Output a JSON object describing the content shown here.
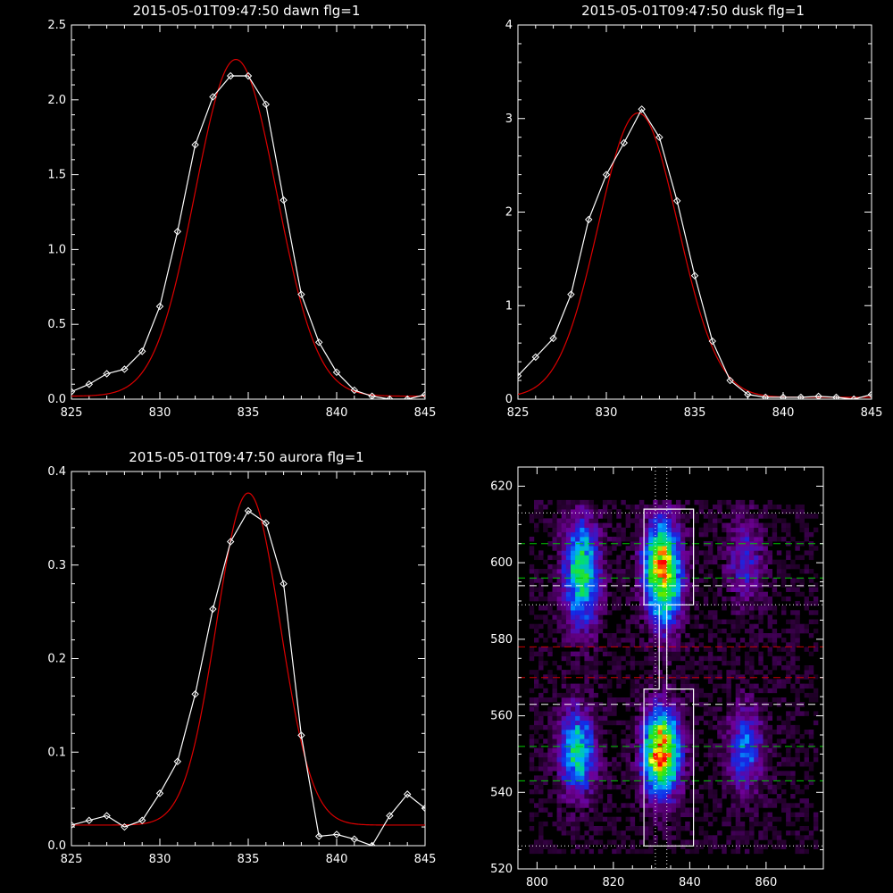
{
  "colors": {
    "background": "#000000",
    "axes": "#ffffff",
    "data_line": "#ffffff",
    "fit_line": "#dd0000"
  },
  "chart_data": [
    {
      "id": "dawn",
      "type": "line",
      "title": "2015-05-01T09:47:50 dawn flg=1",
      "xlim": [
        825,
        845
      ],
      "ylim": [
        0,
        2.5
      ],
      "xticks": [
        825,
        830,
        835,
        840,
        845
      ],
      "yticks": [
        0.0,
        0.5,
        1.0,
        1.5,
        2.0,
        2.5
      ],
      "ytick_labels": [
        "0.0",
        "0.5",
        "1.0",
        "1.5",
        "2.0",
        "2.5"
      ],
      "series": [
        {
          "role": "data",
          "marker": "diamond",
          "x": [
            825,
            826,
            827,
            828,
            829,
            830,
            831,
            832,
            833,
            834,
            835,
            836,
            837,
            838,
            839,
            840,
            841,
            842,
            843,
            844,
            845
          ],
          "y": [
            0.05,
            0.1,
            0.17,
            0.2,
            0.32,
            0.62,
            1.12,
            1.7,
            2.02,
            2.16,
            2.16,
            1.97,
            1.33,
            0.7,
            0.38,
            0.18,
            0.06,
            0.02,
            0.0,
            0.0,
            0.03
          ]
        },
        {
          "role": "fit",
          "gaussian": {
            "amplitude": 2.25,
            "center": 834.3,
            "sigma": 2.3,
            "baseline": 0.02
          }
        }
      ]
    },
    {
      "id": "dusk",
      "type": "line",
      "title": "2015-05-01T09:47:50 dusk flg=1",
      "xlim": [
        825,
        845
      ],
      "ylim": [
        0,
        4
      ],
      "xticks": [
        825,
        830,
        835,
        840,
        845
      ],
      "yticks": [
        0,
        1,
        2,
        3,
        4
      ],
      "ytick_labels": [
        "0",
        "1",
        "2",
        "3",
        "4"
      ],
      "series": [
        {
          "role": "data",
          "marker": "diamond",
          "x": [
            825,
            826,
            827,
            828,
            829,
            830,
            831,
            832,
            833,
            834,
            835,
            836,
            837,
            838,
            839,
            840,
            841,
            842,
            843,
            844,
            845
          ],
          "y": [
            0.25,
            0.45,
            0.65,
            1.12,
            1.92,
            2.4,
            2.74,
            3.1,
            2.8,
            2.12,
            1.32,
            0.62,
            0.2,
            0.05,
            0.02,
            0.02,
            0.02,
            0.03,
            0.02,
            0.0,
            0.05
          ]
        },
        {
          "role": "fit",
          "gaussian": {
            "amplitude": 3.04,
            "center": 831.8,
            "sigma": 2.25,
            "baseline": 0.02
          }
        }
      ]
    },
    {
      "id": "aurora",
      "type": "line",
      "title": "2015-05-01T09:47:50 aurora flg=1",
      "xlim": [
        825,
        845
      ],
      "ylim": [
        0,
        0.4
      ],
      "xticks": [
        825,
        830,
        835,
        840,
        845
      ],
      "yticks": [
        0.0,
        0.1,
        0.2,
        0.3,
        0.4
      ],
      "ytick_labels": [
        "0.0",
        "0.1",
        "0.2",
        "0.3",
        "0.4"
      ],
      "series": [
        {
          "role": "data",
          "marker": "diamond",
          "x": [
            825,
            826,
            827,
            828,
            829,
            830,
            831,
            832,
            833,
            834,
            835,
            836,
            837,
            838,
            839,
            840,
            841,
            842,
            843,
            844,
            845
          ],
          "y": [
            0.022,
            0.027,
            0.032,
            0.02,
            0.027,
            0.056,
            0.09,
            0.162,
            0.253,
            0.325,
            0.358,
            0.345,
            0.28,
            0.118,
            0.01,
            0.012,
            0.007,
            0.0,
            0.032,
            0.055,
            0.04
          ]
        },
        {
          "role": "fit",
          "gaussian": {
            "amplitude": 0.355,
            "center": 835.0,
            "sigma": 1.8,
            "baseline": 0.022
          }
        }
      ]
    },
    {
      "id": "image",
      "type": "heatmap",
      "title": "",
      "xlim": [
        795,
        875
      ],
      "ylim": [
        520,
        625
      ],
      "xticks": [
        800,
        820,
        840,
        860
      ],
      "yticks": [
        520,
        540,
        560,
        580,
        600,
        620
      ],
      "emission_blobs": [
        {
          "x": 811,
          "y": 601,
          "intensity": 0.45
        },
        {
          "x": 811,
          "y": 590,
          "intensity": 0.3
        },
        {
          "x": 832,
          "y": 600,
          "intensity": 0.72
        },
        {
          "x": 833,
          "y": 590,
          "intensity": 0.35
        },
        {
          "x": 854,
          "y": 600,
          "intensity": 0.25
        },
        {
          "x": 810,
          "y": 550,
          "intensity": 0.55
        },
        {
          "x": 832,
          "y": 550,
          "intensity": 0.95
        },
        {
          "x": 854,
          "y": 551,
          "intensity": 0.35
        }
      ],
      "hot_spots": [
        {
          "x": 833,
          "y": 600,
          "color": "#ff0000"
        },
        {
          "x": 831,
          "y": 549,
          "color": "#ff2000"
        },
        {
          "x": 832,
          "y": 551,
          "color": "#ffdd00"
        },
        {
          "x": 830,
          "y": 548,
          "color": "#ffff40"
        }
      ],
      "hlines": [
        {
          "y": 613,
          "style": "dotted",
          "color": "#ffffff"
        },
        {
          "y": 605,
          "style": "dashed",
          "color": "#00cc00"
        },
        {
          "y": 596,
          "style": "dashed",
          "color": "#00cc00"
        },
        {
          "y": 594,
          "style": "dashed",
          "color": "#ffffff"
        },
        {
          "y": 589,
          "style": "dotted",
          "color": "#ffffff"
        },
        {
          "y": 578,
          "style": "dashed",
          "color": "#cc0000"
        },
        {
          "y": 570,
          "style": "dashed",
          "color": "#cc0000"
        },
        {
          "y": 563,
          "style": "dashed",
          "color": "#ffffff"
        },
        {
          "y": 552,
          "style": "dashed",
          "color": "#00cc00"
        },
        {
          "y": 543,
          "style": "dashed",
          "color": "#00cc00"
        },
        {
          "y": 526,
          "style": "dotted",
          "color": "#ffffff"
        }
      ],
      "vlines": [
        {
          "x": 831,
          "style": "dotted",
          "color": "#ffffff"
        },
        {
          "x": 834,
          "style": "dotted",
          "color": "#ffffff"
        }
      ],
      "outline_path": [
        [
          828,
          526
        ],
        [
          841,
          526
        ],
        [
          841,
          567
        ],
        [
          834,
          567
        ],
        [
          834,
          589
        ],
        [
          841,
          589
        ],
        [
          841,
          614
        ],
        [
          828,
          614
        ],
        [
          828,
          589
        ],
        [
          832,
          589
        ],
        [
          832,
          567
        ],
        [
          828,
          567
        ],
        [
          828,
          526
        ]
      ]
    }
  ]
}
